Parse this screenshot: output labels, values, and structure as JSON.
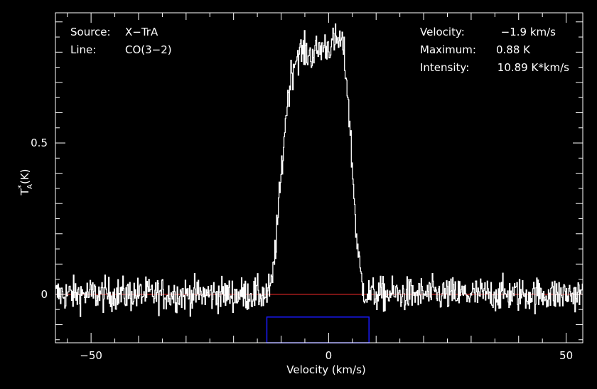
{
  "chart_data": {
    "type": "line",
    "title": "",
    "xlabel": "Velocity (km/s)",
    "ylabel_main": "T",
    "ylabel_sup": "*",
    "ylabel_sub": "A",
    "ylabel_unit": "(K)",
    "xlim": [
      -57.5,
      53.5
    ],
    "ylim": [
      -0.16,
      0.93
    ],
    "x_ticks": [
      {
        "value": -50,
        "label": "−50"
      },
      {
        "value": 0,
        "label": "0"
      },
      {
        "value": 50,
        "label": "50"
      }
    ],
    "y_ticks": [
      {
        "value": 0,
        "label": "0"
      },
      {
        "value": 0.5,
        "label": "0.5"
      }
    ],
    "baseline": {
      "value": 0,
      "color": "#cc2222"
    },
    "window": {
      "x": [
        -13,
        8.5
      ],
      "y": [
        -0.16,
        -0.075
      ],
      "color": "#1a1aff"
    },
    "series": [
      {
        "color": "#ffffff",
        "x": [
          -57.5,
          -55,
          -52.5,
          -50,
          -47.5,
          -45,
          -42.5,
          -40,
          -37.5,
          -35,
          -32.5,
          -30,
          -27.5,
          -25,
          -22.5,
          -20,
          -17.5,
          -15,
          -13,
          -12,
          -11,
          -10,
          -9,
          -8,
          -7,
          -6,
          -5,
          -4,
          -3,
          -2,
          -1,
          0,
          1,
          2,
          3,
          4,
          5,
          6,
          7,
          8,
          9,
          10,
          12.5,
          15,
          17.5,
          20,
          22.5,
          25,
          27.5,
          30,
          32.5,
          35,
          37.5,
          40,
          42.5,
          45,
          47.5,
          50,
          52.5,
          53.5
        ],
        "y": [
          0,
          0,
          0,
          0,
          0,
          0,
          0,
          0,
          0,
          0,
          0,
          0,
          0,
          0,
          0,
          0,
          0,
          0,
          0,
          0.03,
          0.2,
          0.4,
          0.6,
          0.72,
          0.78,
          0.8,
          0.8,
          0.79,
          0.8,
          0.81,
          0.82,
          0.82,
          0.83,
          0.84,
          0.82,
          0.66,
          0.4,
          0.15,
          0.03,
          0,
          0,
          0,
          0,
          0,
          0,
          0,
          0,
          0,
          0,
          0,
          0,
          0,
          0,
          0,
          0,
          0,
          0,
          0,
          0,
          0
        ],
        "noise": 0.04
      }
    ]
  },
  "annotations": {
    "source_label": "Source:",
    "source_value": "X−TrA",
    "line_label": "Line:",
    "line_value": "CO(3−2)",
    "velocity_label": "Velocity:",
    "velocity_value": "−1.9 km/s",
    "maximum_label": "Maximum:",
    "maximum_value": "0.88 K",
    "intensity_label": "Intensity:",
    "intensity_value": "10.89 K*km/s"
  }
}
